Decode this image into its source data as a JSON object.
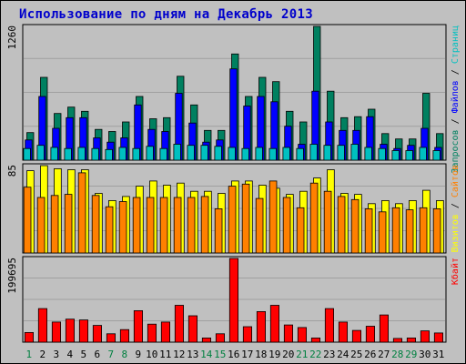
{
  "title": "Использование по дням на Декабрь 2013",
  "colors": {
    "background": "#c0c0c0",
    "title": "#0000cc",
    "grid": "#a0a0a0",
    "requests": "#008060",
    "files": "#0000ff",
    "pages": "#00c0c0",
    "visits": "#ffff00",
    "sites": "#ff8000",
    "kbytes": "#ff0000",
    "weekday_label": "#000000",
    "weekend_label": "#008040"
  },
  "chart_data": [
    {
      "type": "bar",
      "panel": "requests_files_pages",
      "ymax_label": "1260",
      "ymax": 1260,
      "categories": [
        "1",
        "2",
        "3",
        "4",
        "5",
        "6",
        "7",
        "8",
        "9",
        "10",
        "11",
        "12",
        "13",
        "14",
        "15",
        "16",
        "17",
        "18",
        "19",
        "20",
        "21",
        "22",
        "23",
        "24",
        "25",
        "26",
        "27",
        "28",
        "29",
        "30",
        "31"
      ],
      "weekend": [
        true,
        false,
        false,
        false,
        false,
        false,
        true,
        true,
        false,
        false,
        false,
        false,
        false,
        true,
        true,
        false,
        false,
        false,
        false,
        false,
        true,
        true,
        false,
        false,
        false,
        false,
        false,
        true,
        true,
        false,
        false
      ],
      "legend": [
        {
          "label": "Запросов",
          "color": "#008060"
        },
        {
          "label": "Файлов",
          "color": "#0000ff"
        },
        {
          "label": "Страниц",
          "color": "#00c0c0"
        }
      ],
      "legend_separator": " / ",
      "series": [
        {
          "name": "Запросов",
          "values": [
            260,
            780,
            440,
            500,
            460,
            290,
            270,
            360,
            600,
            390,
            400,
            790,
            520,
            280,
            280,
            1000,
            600,
            780,
            740,
            460,
            360,
            1260,
            650,
            400,
            410,
            480,
            250,
            200,
            200,
            630,
            250
          ]
        },
        {
          "name": "Файлов",
          "values": [
            190,
            600,
            300,
            400,
            400,
            210,
            170,
            210,
            520,
            290,
            270,
            630,
            350,
            170,
            190,
            860,
            510,
            600,
            550,
            320,
            150,
            650,
            360,
            280,
            280,
            410,
            150,
            110,
            140,
            300,
            120
          ]
        },
        {
          "name": "Страниц",
          "values": [
            110,
            140,
            120,
            110,
            120,
            110,
            100,
            120,
            110,
            130,
            110,
            150,
            140,
            140,
            130,
            120,
            110,
            120,
            110,
            120,
            110,
            150,
            140,
            140,
            150,
            120,
            110,
            90,
            90,
            120,
            90
          ]
        }
      ]
    },
    {
      "type": "bar",
      "panel": "visits_sites",
      "ymax_label": "85",
      "ymax": 85,
      "categories": [
        "1",
        "2",
        "3",
        "4",
        "5",
        "6",
        "7",
        "8",
        "9",
        "10",
        "11",
        "12",
        "13",
        "14",
        "15",
        "16",
        "17",
        "18",
        "19",
        "20",
        "21",
        "22",
        "23",
        "24",
        "25",
        "26",
        "27",
        "28",
        "29",
        "30",
        "31"
      ],
      "legend": [
        {
          "label": "Визитов",
          "color": "#ffff00"
        },
        {
          "label": "Сайтов",
          "color": "#ff8000"
        }
      ],
      "legend_separator": " / ",
      "series": [
        {
          "name": "Визитов",
          "values": [
            80,
            85,
            82,
            81,
            81,
            58,
            51,
            55,
            65,
            70,
            66,
            68,
            60,
            60,
            58,
            70,
            70,
            66,
            63,
            57,
            60,
            73,
            81,
            58,
            57,
            48,
            51,
            48,
            51,
            61,
            51
          ]
        },
        {
          "name": "Сайтов",
          "values": [
            64,
            54,
            56,
            57,
            78,
            56,
            45,
            50,
            54,
            54,
            54,
            54,
            54,
            55,
            43,
            65,
            67,
            53,
            70,
            54,
            44,
            68,
            60,
            55,
            52,
            43,
            40,
            44,
            42,
            44,
            43
          ]
        }
      ]
    },
    {
      "type": "bar",
      "panel": "kbytes",
      "ymax_label": "199695",
      "ymax": 199695,
      "categories": [
        "1",
        "2",
        "3",
        "4",
        "5",
        "6",
        "7",
        "8",
        "9",
        "10",
        "11",
        "12",
        "13",
        "14",
        "15",
        "16",
        "17",
        "18",
        "19",
        "20",
        "21",
        "22",
        "23",
        "24",
        "25",
        "26",
        "27",
        "28",
        "29",
        "30",
        "31"
      ],
      "legend": [
        {
          "label": "Кбайт",
          "color": "#ff0000"
        }
      ],
      "legend_separator": "",
      "series": [
        {
          "name": "Кбайт",
          "values": [
            23000,
            80000,
            48000,
            55000,
            53000,
            40000,
            20000,
            30000,
            75000,
            43000,
            48000,
            88000,
            63000,
            10000,
            20000,
            199695,
            37000,
            73000,
            88000,
            41000,
            35000,
            10000,
            80000,
            48000,
            28000,
            38000,
            65000,
            9000,
            10000,
            27000,
            22000
          ]
        }
      ]
    }
  ]
}
